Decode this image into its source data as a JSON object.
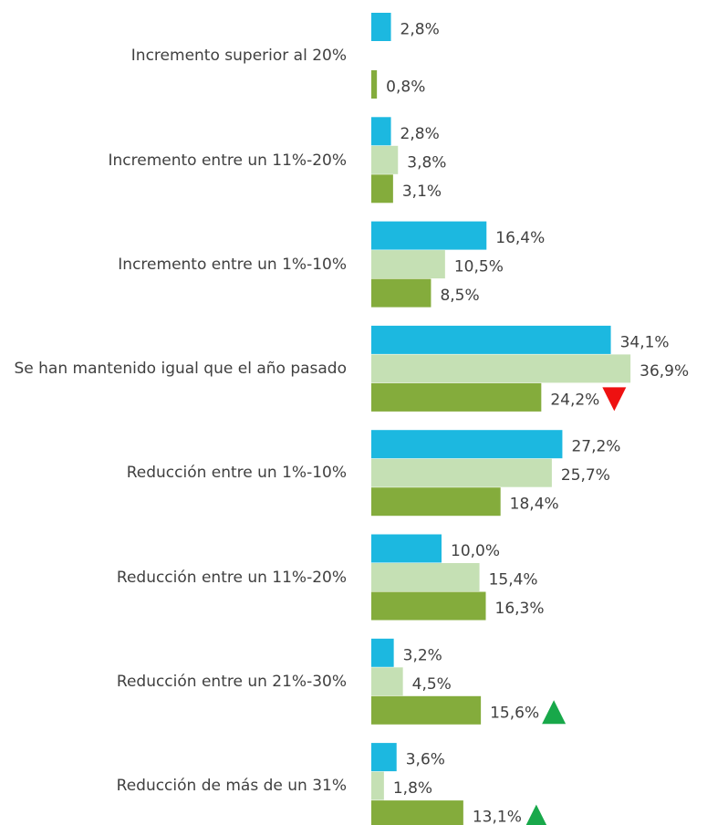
{
  "chart_data": {
    "type": "bar",
    "orientation": "horizontal",
    "categories": [
      "Incremento superior al 20%",
      "Incremento entre un 11%-20%",
      "Incremento entre un 1%-10%",
      "Se han mantenido igual que el año pasado",
      "Reducción entre un 1%-10%",
      "Reducción entre un 11%-20%",
      "Reducción entre un 21%-30%",
      "Reducción de más de un 31%"
    ],
    "series": [
      {
        "color": "#1cb8e0",
        "values": [
          2.8,
          2.8,
          16.4,
          34.1,
          27.2,
          10.0,
          3.2,
          3.6
        ],
        "value_labels": [
          "2,8%",
          "2,8%",
          "16,4%",
          "34,1%",
          "27,2%",
          "10,0%",
          "3,2%",
          "3,6%"
        ]
      },
      {
        "color": "#c5e0b4",
        "values": [
          null,
          3.8,
          10.5,
          36.9,
          25.7,
          15.4,
          4.5,
          1.8
        ],
        "value_labels": [
          null,
          "3,8%",
          "10,5%",
          "36,9%",
          "25,7%",
          "15,4%",
          "4,5%",
          "1,8%"
        ]
      },
      {
        "color": "#84ac3c",
        "values": [
          0.8,
          3.1,
          8.5,
          24.2,
          18.4,
          16.3,
          15.6,
          13.1
        ],
        "value_labels": [
          "0,8%",
          "3,1%",
          "8,5%",
          "24,2%",
          "18,4%",
          "16,3%",
          "15,6%",
          "13,1%"
        ]
      }
    ],
    "markers": [
      {
        "series": 2,
        "category": 3,
        "direction": "down",
        "color": "#ee1111"
      },
      {
        "series": 2,
        "category": 6,
        "direction": "up",
        "color": "#18a84a"
      },
      {
        "series": 2,
        "category": 7,
        "direction": "up",
        "color": "#18a84a"
      }
    ]
  }
}
